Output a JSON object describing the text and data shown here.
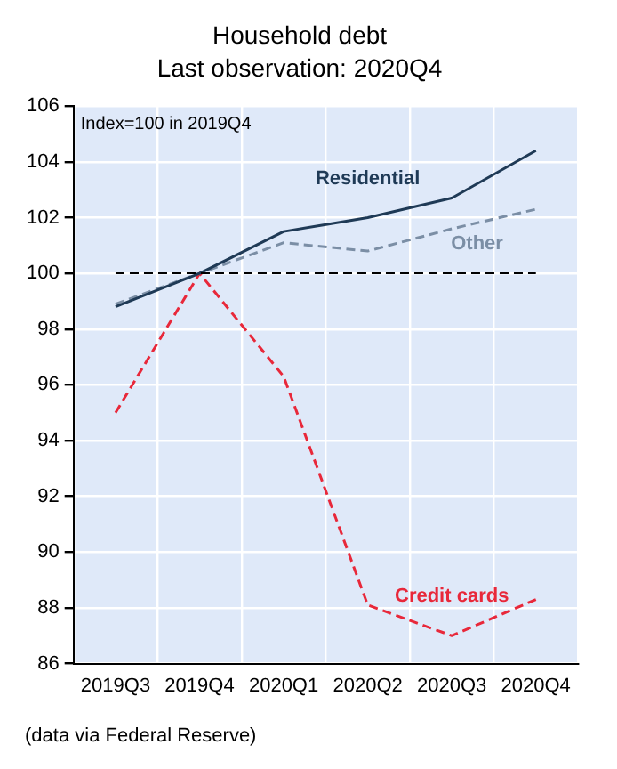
{
  "chart_data": {
    "type": "line",
    "title": "Household debt",
    "subtitle": "Last observation: 2020Q4",
    "categories": [
      "2019Q3",
      "2019Q4",
      "2020Q1",
      "2020Q2",
      "2020Q3",
      "2020Q4"
    ],
    "series": [
      {
        "name": "Residential",
        "color": "#1f3a56",
        "line_style": "solid",
        "values": [
          98.8,
          100,
          101.5,
          102.0,
          102.7,
          104.4
        ]
      },
      {
        "name": "Other",
        "color": "#7b8ea5",
        "line_style": "dashed",
        "values": [
          98.9,
          100,
          101.1,
          100.8,
          101.6,
          102.3
        ]
      },
      {
        "name": "Credit cards",
        "color": "#e8283a",
        "line_style": "dashed",
        "values": [
          95.0,
          100,
          96.3,
          88.1,
          87.0,
          88.3
        ]
      }
    ],
    "ylim": [
      86,
      106
    ],
    "yticks": [
      86,
      88,
      90,
      92,
      94,
      96,
      98,
      100,
      102,
      104,
      106
    ],
    "grid": true,
    "legend": false,
    "marker": "none",
    "ref_lines": [
      {
        "axis": "y",
        "value": 100,
        "color": "#000000",
        "line_style": "dashed"
      }
    ],
    "annotations": [
      "Index=100 in 2019Q4",
      "(data via Federal Reserve)"
    ]
  }
}
